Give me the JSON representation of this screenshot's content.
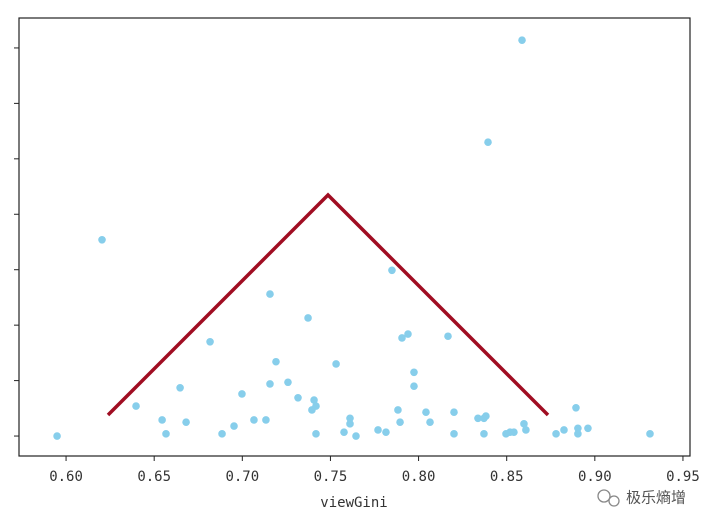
{
  "chart_data": {
    "type": "scatter",
    "x_label": "viewGini",
    "color": "#87ceeb",
    "xlim": [
      0.5733,
      0.954
    ],
    "ylim": [
      -0.36,
      7.54
    ],
    "xticks": [
      {
        "value": 0.6,
        "label": "0.60"
      },
      0.65,
      {
        "value": 0.7,
        "label": "0.70"
      },
      0.75,
      {
        "value": 0.8,
        "label": "0.80"
      },
      0.85,
      {
        "value": 0.9,
        "label": "0.90"
      },
      0.95
    ],
    "yticks": [
      0,
      1,
      2,
      3,
      4,
      5,
      6,
      7
    ],
    "x": [
      0.5949,
      0.6204,
      0.6397,
      0.6545,
      0.6567,
      0.6647,
      0.6681,
      0.6817,
      0.6885,
      0.6953,
      0.6998,
      0.7066,
      0.7134,
      0.7157,
      0.7157,
      0.7191,
      0.7259,
      0.7316,
      0.7373,
      0.7395,
      0.7407,
      0.7418,
      0.7418,
      0.7532,
      0.7577,
      0.7611,
      0.7611,
      0.7645,
      0.777,
      0.7815,
      0.7849,
      0.7883,
      0.7895,
      0.7906,
      0.794,
      0.7974,
      0.7974,
      0.8042,
      0.8065,
      0.8167,
      0.8201,
      0.8201,
      0.8337,
      0.8371,
      0.8382,
      0.8371,
      0.8394,
      0.8496,
      0.8519,
      0.8541,
      0.8587,
      0.8598,
      0.8609,
      0.878,
      0.8825,
      0.8893,
      0.8904,
      0.8904,
      0.8961,
      0.9313
    ],
    "values": [
      0,
      3.54,
      0.54,
      0.29,
      0.04,
      0.87,
      0.25,
      1.7,
      0.04,
      0.18,
      0.76,
      0.29,
      0.29,
      2.56,
      0.94,
      1.34,
      0.97,
      0.69,
      2.13,
      0.47,
      0.65,
      0.54,
      0.04,
      1.3,
      0.07,
      0.32,
      0.22,
      0,
      0.11,
      0.07,
      2.99,
      0.47,
      0.25,
      1.77,
      1.84,
      0.9,
      1.15,
      0.43,
      0.25,
      1.8,
      0.43,
      0.04,
      0.32,
      0.32,
      0.36,
      0.04,
      5.3,
      0.04,
      0.07,
      0.07,
      7.14,
      0.22,
      0.11,
      0.04,
      0.11,
      0.51,
      0.14,
      0.04,
      0.14,
      0.04
    ]
  },
  "watermark": "极乐熵增"
}
